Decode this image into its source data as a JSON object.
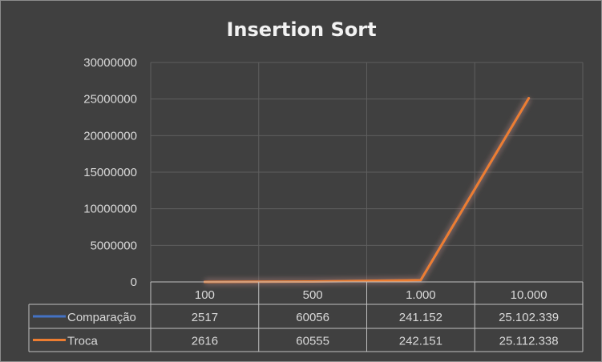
{
  "chart_data": {
    "type": "line",
    "title": "Insertion Sort",
    "categories": [
      "100",
      "500",
      "1.000",
      "10.000"
    ],
    "ylim": [
      0,
      30000000
    ],
    "yticks": [
      "0",
      "5000000",
      "10000000",
      "15000000",
      "20000000",
      "25000000",
      "30000000"
    ],
    "grid": true,
    "legend": "data-table",
    "series": [
      {
        "name": "Comparação",
        "color": "#4472c4",
        "values": [
          2517,
          60056,
          241152,
          25102339
        ],
        "labels": [
          "2517",
          "60056",
          "241.152",
          "25.102.339"
        ]
      },
      {
        "name": "Troca",
        "color": "#ed7d31",
        "values": [
          2616,
          60555,
          242151,
          25112338
        ],
        "labels": [
          "2616",
          "60555",
          "242.151",
          "25.112.338"
        ]
      }
    ]
  }
}
